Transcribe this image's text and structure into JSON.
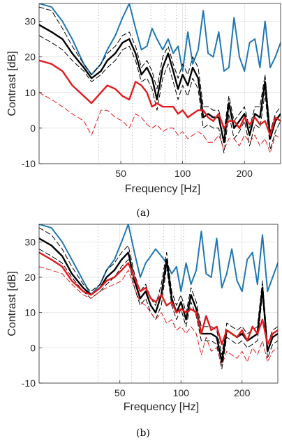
{
  "colors": {
    "blue": "#1f77b4",
    "black": "#000000",
    "red": "#e31a1c",
    "grid": "#dcdcdc",
    "markers": "#9a9a9a"
  },
  "chart_data": [
    {
      "type": "line",
      "caption": "(a)",
      "title": "",
      "xlabel": "Frequency [Hz]",
      "ylabel": "Contrast [dB]",
      "xscale": "log",
      "xlim": [
        20,
        300
      ],
      "ylim": [
        -10,
        35
      ],
      "xticks": [
        50,
        100,
        200
      ],
      "yticks": [
        -10,
        0,
        10,
        20,
        30
      ],
      "grid": true,
      "reference_frequencies_hz": [
        39,
        57,
        70,
        82,
        93,
        103
      ],
      "x": [
        20,
        23,
        26,
        29,
        33,
        36,
        40,
        43,
        47,
        51,
        55,
        59,
        63,
        67,
        71,
        75,
        80,
        85,
        90,
        95,
        100,
        106,
        112,
        119,
        126,
        133,
        141,
        150,
        159,
        168,
        178,
        189,
        200,
        212,
        225,
        238,
        252,
        267,
        283,
        300
      ],
      "series": [
        {
          "color": "#1f77b4",
          "style": "solid",
          "width": 2,
          "values": [
            35,
            34,
            30,
            25,
            18,
            15,
            18,
            22,
            26,
            31,
            35,
            28,
            22,
            23,
            28,
            25,
            22,
            25,
            21,
            23,
            16,
            27,
            18,
            22,
            33,
            21,
            20,
            27,
            16,
            17,
            31,
            20,
            16,
            24,
            25,
            17,
            30,
            17,
            20,
            24
          ]
        },
        {
          "color": "#000000",
          "style": "solid",
          "width": 2.4,
          "values": [
            29,
            27,
            25,
            21,
            17,
            14,
            16,
            19,
            21,
            24,
            25,
            21,
            15,
            17,
            14,
            8,
            17,
            21,
            16,
            11,
            15,
            12,
            17,
            14,
            3,
            4,
            3,
            3,
            -4,
            7,
            0,
            2,
            4,
            -2,
            4,
            3,
            13,
            -3,
            2,
            4
          ]
        },
        {
          "color": "#000000",
          "style": "dashed",
          "width": 1,
          "values": [
            34,
            33,
            28,
            23,
            18,
            15,
            18,
            21,
            23,
            26,
            27,
            23,
            17,
            19,
            16,
            11,
            20,
            23,
            18,
            14,
            18,
            15,
            20,
            17,
            6,
            6,
            5,
            5,
            -1,
            9,
            2,
            4,
            6,
            0,
            6,
            6,
            15,
            -1,
            4,
            6
          ]
        },
        {
          "color": "#000000",
          "style": "dashed",
          "width": 1,
          "values": [
            26,
            24,
            22,
            19,
            16,
            13,
            15,
            17,
            19,
            22,
            23,
            19,
            13,
            14,
            11,
            5,
            14,
            18,
            13,
            8,
            12,
            9,
            14,
            11,
            0,
            1,
            0,
            0,
            -7,
            4,
            -3,
            -1,
            2,
            -5,
            1,
            0,
            10,
            -6,
            -1,
            2
          ]
        },
        {
          "color": "#e31a1c",
          "style": "solid",
          "width": 2.4,
          "values": [
            19,
            18,
            16,
            12,
            9,
            7,
            10,
            12,
            11,
            9,
            8,
            13,
            12,
            10,
            6,
            7,
            6,
            6,
            6,
            4,
            5,
            3,
            4,
            5,
            5,
            3,
            2,
            4,
            0,
            2,
            2,
            0,
            3,
            1,
            3,
            1,
            2,
            -2,
            3,
            2
          ]
        },
        {
          "color": "#e31a1c",
          "style": "dashed",
          "width": 1,
          "values": [
            10,
            8,
            6,
            4,
            2,
            -2,
            5,
            5,
            3,
            2,
            0,
            4,
            3,
            1,
            0,
            1,
            -1,
            0,
            0,
            -2,
            -1,
            -3,
            -2,
            -1,
            -2,
            -4,
            -4,
            -2,
            -6,
            -3,
            -3,
            -5,
            -2,
            -4,
            -2,
            -5,
            -3,
            -7,
            -2,
            -3
          ]
        }
      ]
    },
    {
      "type": "line",
      "caption": "(b)",
      "title": "",
      "xlabel": "Frequency [Hz]",
      "ylabel": "Contrast [dB]",
      "xscale": "log",
      "xlim": [
        20,
        300
      ],
      "ylim": [
        -10,
        35
      ],
      "xticks": [
        50,
        100,
        200
      ],
      "yticks": [
        -10,
        0,
        10,
        20,
        30
      ],
      "grid": true,
      "reference_frequencies_hz": [
        39,
        57,
        70,
        82,
        93,
        103
      ],
      "x": [
        20,
        23,
        26,
        29,
        33,
        36,
        40,
        43,
        47,
        51,
        55,
        59,
        63,
        67,
        71,
        75,
        80,
        85,
        90,
        95,
        100,
        106,
        112,
        119,
        126,
        133,
        141,
        150,
        159,
        168,
        178,
        189,
        200,
        212,
        225,
        238,
        252,
        267,
        283,
        300
      ],
      "series": [
        {
          "color": "#1f77b4",
          "style": "solid",
          "width": 2,
          "values": [
            35,
            34,
            30,
            25,
            19,
            15,
            18,
            22,
            25,
            30,
            35,
            27,
            20,
            24,
            26,
            28,
            26,
            24,
            21,
            23,
            16,
            24,
            18,
            22,
            33,
            21,
            20,
            31,
            17,
            21,
            28,
            19,
            16,
            25,
            27,
            18,
            32,
            16,
            20,
            24
          ]
        },
        {
          "color": "#000000",
          "style": "solid",
          "width": 2.4,
          "values": [
            31,
            29,
            26,
            21,
            17,
            15,
            17,
            20,
            22,
            25,
            27,
            19,
            14,
            16,
            12,
            10,
            15,
            25,
            14,
            10,
            13,
            8,
            15,
            11,
            4,
            4,
            4,
            3,
            -4,
            5,
            4,
            3,
            4,
            2,
            3,
            4,
            17,
            -1,
            3,
            4
          ]
        },
        {
          "color": "#000000",
          "style": "dashed",
          "width": 1,
          "values": [
            34,
            32,
            28,
            23,
            18,
            16,
            18,
            22,
            24,
            27,
            29,
            21,
            16,
            18,
            14,
            12,
            18,
            27,
            16,
            12,
            15,
            10,
            17,
            13,
            6,
            6,
            6,
            5,
            -2,
            7,
            6,
            5,
            6,
            4,
            5,
            6,
            19,
            1,
            5,
            6
          ]
        },
        {
          "color": "#000000",
          "style": "dashed",
          "width": 1,
          "values": [
            28,
            26,
            24,
            20,
            16,
            14,
            16,
            18,
            20,
            23,
            25,
            17,
            12,
            14,
            10,
            8,
            12,
            23,
            12,
            8,
            11,
            6,
            13,
            9,
            2,
            2,
            2,
            1,
            -6,
            3,
            2,
            1,
            2,
            0,
            1,
            2,
            15,
            -3,
            1,
            2
          ]
        },
        {
          "color": "#e31a1c",
          "style": "solid",
          "width": 2.4,
          "values": [
            27,
            25,
            23,
            19,
            16,
            15,
            17,
            19,
            20,
            22,
            24,
            20,
            16,
            17,
            14,
            13,
            15,
            12,
            13,
            10,
            11,
            10,
            11,
            10,
            4,
            9,
            5,
            6,
            1,
            5,
            4,
            3,
            5,
            2,
            6,
            4,
            8,
            1,
            4,
            5
          ]
        },
        {
          "color": "#e31a1c",
          "style": "dashed",
          "width": 1,
          "values": [
            23,
            22,
            21,
            18,
            15,
            14,
            16,
            17,
            18,
            19,
            22,
            17,
            13,
            12,
            10,
            8,
            10,
            7,
            8,
            5,
            6,
            4,
            6,
            4,
            -2,
            3,
            -1,
            0,
            -5,
            -1,
            -2,
            -3,
            -1,
            -4,
            0,
            -2,
            2,
            -4,
            -1,
            0
          ]
        }
      ]
    }
  ]
}
